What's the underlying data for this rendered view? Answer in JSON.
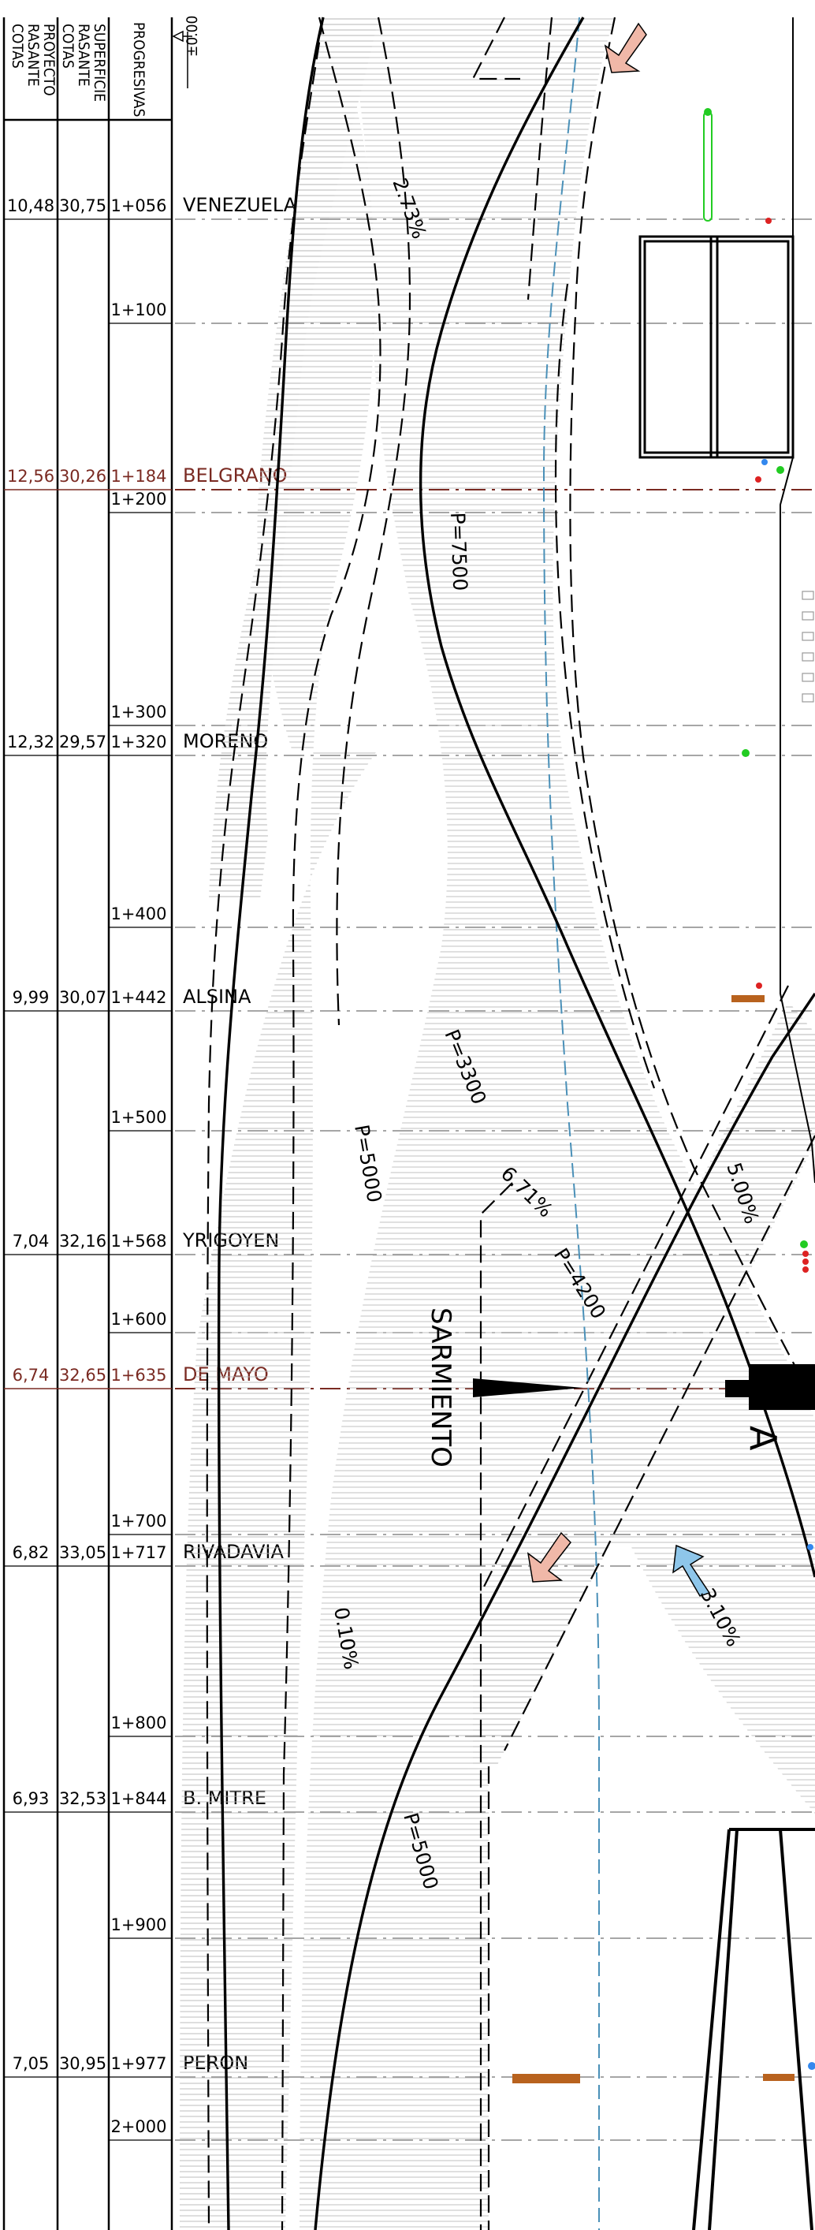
{
  "headers": {
    "col1": [
      "COTAS",
      "RASANTE",
      "PROYECTO"
    ],
    "col2": [
      "COTAS",
      "RASANTE",
      "SUPERFICIE"
    ],
    "col3": "PROGRESIVAS",
    "datum": "±0.00"
  },
  "stations": [
    {
      "proyecto": "10,48",
      "superficie": "30,75",
      "progresiva": "1+056",
      "street": "VENEZUELA",
      "highlight": false
    },
    {
      "proyecto": "",
      "superficie": "",
      "progresiva": "1+100",
      "street": "",
      "highlight": false
    },
    {
      "proyecto": "12,56",
      "superficie": "30,26",
      "progresiva": "1+184",
      "street": "BELGRANO",
      "highlight": true
    },
    {
      "proyecto": "",
      "superficie": "",
      "progresiva": "1+200",
      "street": "",
      "highlight": false
    },
    {
      "proyecto": "",
      "superficie": "",
      "progresiva": "1+300",
      "street": "",
      "highlight": false
    },
    {
      "proyecto": "12,32",
      "superficie": "29,57",
      "progresiva": "1+320",
      "street": "MORENO",
      "highlight": false
    },
    {
      "proyecto": "",
      "superficie": "",
      "progresiva": "1+400",
      "street": "",
      "highlight": false
    },
    {
      "proyecto": "9,99",
      "superficie": "30,07",
      "progresiva": "1+442",
      "street": "ALSINA",
      "highlight": false
    },
    {
      "proyecto": "",
      "superficie": "",
      "progresiva": "1+500",
      "street": "",
      "highlight": false
    },
    {
      "proyecto": "7,04",
      "superficie": "32,16",
      "progresiva": "1+568",
      "street": "YRIGOYEN",
      "highlight": false
    },
    {
      "proyecto": "",
      "superficie": "",
      "progresiva": "1+600",
      "street": "",
      "highlight": false
    },
    {
      "proyecto": "6,74",
      "superficie": "32,65",
      "progresiva": "1+635",
      "street": "DE MAYO",
      "highlight": true
    },
    {
      "proyecto": "",
      "superficie": "",
      "progresiva": "1+700",
      "street": "",
      "highlight": false
    },
    {
      "proyecto": "6,82",
      "superficie": "33,05",
      "progresiva": "1+717",
      "street": "RIVADAVIA",
      "highlight": false
    },
    {
      "proyecto": "",
      "superficie": "",
      "progresiva": "1+800",
      "street": "",
      "highlight": false
    },
    {
      "proyecto": "6,93",
      "superficie": "32,53",
      "progresiva": "1+844",
      "street": "B.  MITRE",
      "highlight": false
    },
    {
      "proyecto": "",
      "superficie": "",
      "progresiva": "1+900",
      "street": "",
      "highlight": false
    },
    {
      "proyecto": "7,05",
      "superficie": "30,95",
      "progresiva": "1+977",
      "street": "PERON",
      "highlight": false
    },
    {
      "proyecto": "",
      "superficie": "",
      "progresiva": "2+000",
      "street": "",
      "highlight": false
    }
  ],
  "annotations": {
    "slope_a": "2.73%",
    "radius_a": "P=7500",
    "radius_b": "P=3300",
    "radius_c": "P=5000",
    "slope_b": "6.71%",
    "radius_d": "P=4200",
    "slope_c": "5.00%",
    "tunnel_name": "SARMIENTO",
    "letter_a": "A",
    "slope_d": "0.10%",
    "slope_e": "3.10%",
    "radius_e": "P=5000"
  },
  "colors": {
    "line": "#000000",
    "grid": "#888888",
    "highlight": "#7a2a22",
    "axis_dash": "#4a90b8",
    "arrow_pink": "#f0b8a8",
    "arrow_blue": "#8ec6ea",
    "marker_green": "#22cc22",
    "marker_red": "#dd2222",
    "marker_blue": "#3388ee",
    "bar_brown": "#b8621e"
  }
}
